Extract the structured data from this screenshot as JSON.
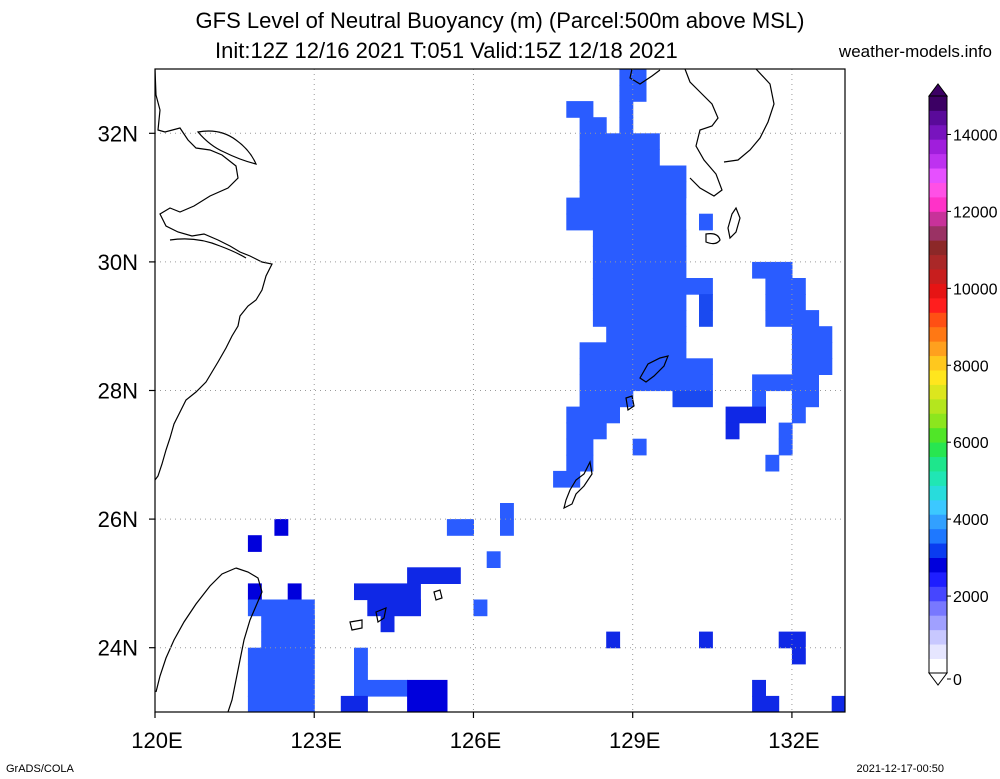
{
  "title_line1": "GFS Level of Neutral Buoyancy (m) (Parcel:500m above MSL)",
  "title_line2": "Init:12Z 12/16 2021 T:051 Valid:15Z 12/18 2021",
  "site": "weather-models.info",
  "footer_left": "GrADS/COLA",
  "footer_right": "2021-12-17-00:50",
  "chart_data": {
    "type": "heatmap",
    "title": "GFS Level of Neutral Buoyancy (m) (Parcel:500m above MSL)",
    "subtitle": "Init:12Z 12/16 2021 T:051 Valid:15Z 12/18 2021",
    "xlabel": "",
    "ylabel": "",
    "x_range": [
      120,
      133
    ],
    "y_range": [
      23,
      33
    ],
    "x_ticks": [
      120,
      123,
      126,
      129,
      132
    ],
    "x_tick_labels": [
      "120E",
      "123E",
      "126E",
      "129E",
      "132E"
    ],
    "y_ticks": [
      24,
      26,
      28,
      30,
      32
    ],
    "y_tick_labels": [
      "24N",
      "26N",
      "28N",
      "30N",
      "32N"
    ],
    "grid": true,
    "grid_resolution_deg": 0.25,
    "colorbar": {
      "range": [
        0,
        15000
      ],
      "tick_values": [
        0,
        2000,
        4000,
        6000,
        8000,
        10000,
        12000,
        14000
      ],
      "tick_labels": [
        "0",
        "2000",
        "4000",
        "6000",
        "8000",
        "10000",
        "12000",
        "14000"
      ],
      "colors": [
        "#ffffff",
        "#e6e6ff",
        "#c8c8ff",
        "#a0a0ff",
        "#7878ff",
        "#4646ff",
        "#1e1eff",
        "#0000dc",
        "#0a3cf0",
        "#1e78ff",
        "#32a0ff",
        "#3cc8ff",
        "#28dcdc",
        "#20e6b4",
        "#1ee68c",
        "#28e650",
        "#50e628",
        "#8ce61e",
        "#b4e61e",
        "#dce61e",
        "#ffe61e",
        "#ffc81e",
        "#ffa01e",
        "#ff7814",
        "#ff5014",
        "#ff1e1e",
        "#e61414",
        "#c81e1e",
        "#aa2828",
        "#8c2828",
        "#9a3264",
        "#c8329a",
        "#ff32c8",
        "#ff50e6",
        "#e650ff",
        "#be32f0",
        "#a01edc",
        "#7814be",
        "#5a0a9a",
        "#3c0064"
      ],
      "position": "right"
    },
    "cell_colors": {
      "a": "#2a5cff",
      "b": "#1a4af0",
      "c": "#0f28e6",
      "d": "#0000dc"
    },
    "rows": [
      {
        "lat": 32.875,
        "cells": [
          [
            128.75,
            129.25,
            "a"
          ]
        ]
      },
      {
        "lat": 32.625,
        "cells": [
          [
            128.75,
            129.25,
            "a"
          ]
        ]
      },
      {
        "lat": 32.375,
        "cells": [
          [
            127.75,
            128.25,
            "a"
          ],
          [
            128.75,
            129.0,
            "a"
          ]
        ]
      },
      {
        "lat": 32.125,
        "cells": [
          [
            128.0,
            128.5,
            "a"
          ],
          [
            128.75,
            129.0,
            "a"
          ]
        ]
      },
      {
        "lat": 31.875,
        "cells": [
          [
            128.0,
            129.5,
            "a"
          ]
        ]
      },
      {
        "lat": 31.625,
        "cells": [
          [
            128.0,
            129.5,
            "a"
          ]
        ]
      },
      {
        "lat": 31.375,
        "cells": [
          [
            128.0,
            130.0,
            "a"
          ]
        ]
      },
      {
        "lat": 31.125,
        "cells": [
          [
            128.0,
            130.0,
            "a"
          ]
        ]
      },
      {
        "lat": 30.875,
        "cells": [
          [
            127.75,
            130.0,
            "a"
          ]
        ]
      },
      {
        "lat": 30.625,
        "cells": [
          [
            127.75,
            130.0,
            "a"
          ],
          [
            130.25,
            130.5,
            "a"
          ]
        ]
      },
      {
        "lat": 30.375,
        "cells": [
          [
            128.25,
            130.0,
            "a"
          ]
        ]
      },
      {
        "lat": 30.125,
        "cells": [
          [
            128.25,
            130.0,
            "a"
          ]
        ]
      },
      {
        "lat": 29.875,
        "cells": [
          [
            128.25,
            130.0,
            "a"
          ],
          [
            131.25,
            132.0,
            "a"
          ]
        ]
      },
      {
        "lat": 29.625,
        "cells": [
          [
            128.25,
            130.5,
            "a"
          ],
          [
            131.5,
            132.25,
            "a"
          ]
        ]
      },
      {
        "lat": 29.375,
        "cells": [
          [
            128.25,
            130.0,
            "a"
          ],
          [
            130.25,
            130.5,
            "b"
          ],
          [
            131.5,
            132.25,
            "a"
          ]
        ]
      },
      {
        "lat": 29.125,
        "cells": [
          [
            128.25,
            130.0,
            "a"
          ],
          [
            130.25,
            130.5,
            "b"
          ],
          [
            131.5,
            132.5,
            "a"
          ]
        ]
      },
      {
        "lat": 28.875,
        "cells": [
          [
            128.5,
            130.0,
            "a"
          ],
          [
            132.0,
            132.75,
            "a"
          ]
        ]
      },
      {
        "lat": 28.625,
        "cells": [
          [
            128.0,
            130.0,
            "a"
          ],
          [
            132.0,
            132.75,
            "a"
          ]
        ]
      },
      {
        "lat": 28.375,
        "cells": [
          [
            128.0,
            130.5,
            "a"
          ],
          [
            132.0,
            132.75,
            "a"
          ]
        ]
      },
      {
        "lat": 28.125,
        "cells": [
          [
            128.0,
            130.5,
            "a"
          ],
          [
            131.25,
            132.5,
            "a"
          ]
        ]
      },
      {
        "lat": 27.875,
        "cells": [
          [
            128.0,
            129.0,
            "a"
          ],
          [
            129.75,
            130.5,
            "b"
          ],
          [
            131.25,
            131.5,
            "a"
          ],
          [
            132.0,
            132.5,
            "a"
          ]
        ]
      },
      {
        "lat": 27.625,
        "cells": [
          [
            127.75,
            128.75,
            "a"
          ],
          [
            130.75,
            131.5,
            "c"
          ],
          [
            132.0,
            132.25,
            "a"
          ]
        ]
      },
      {
        "lat": 27.375,
        "cells": [
          [
            127.75,
            128.5,
            "a"
          ],
          [
            130.75,
            131.0,
            "c"
          ],
          [
            131.75,
            132.0,
            "a"
          ]
        ]
      },
      {
        "lat": 27.125,
        "cells": [
          [
            127.75,
            128.25,
            "a"
          ],
          [
            129.0,
            129.25,
            "a"
          ],
          [
            131.75,
            132.0,
            "a"
          ]
        ]
      },
      {
        "lat": 26.875,
        "cells": [
          [
            127.75,
            128.25,
            "a"
          ],
          [
            131.5,
            131.75,
            "a"
          ]
        ]
      },
      {
        "lat": 26.625,
        "cells": [
          [
            127.5,
            128.0,
            "a"
          ]
        ]
      },
      {
        "lat": 26.125,
        "cells": [
          [
            126.5,
            126.75,
            "a"
          ]
        ]
      },
      {
        "lat": 25.875,
        "cells": [
          [
            122.25,
            122.5,
            "d"
          ],
          [
            125.5,
            126.0,
            "a"
          ],
          [
            126.5,
            126.75,
            "a"
          ]
        ]
      },
      {
        "lat": 25.625,
        "cells": [
          [
            121.75,
            122.0,
            "d"
          ]
        ]
      },
      {
        "lat": 25.375,
        "cells": [
          [
            126.25,
            126.5,
            "a"
          ]
        ]
      },
      {
        "lat": 25.125,
        "cells": [
          [
            124.75,
            125.75,
            "c"
          ]
        ]
      },
      {
        "lat": 24.875,
        "cells": [
          [
            121.75,
            122.0,
            "d"
          ],
          [
            122.5,
            122.75,
            "d"
          ],
          [
            123.75,
            125.0,
            "c"
          ]
        ]
      },
      {
        "lat": 24.625,
        "cells": [
          [
            121.75,
            123.0,
            "a"
          ],
          [
            124.0,
            125.0,
            "c"
          ],
          [
            126.0,
            126.25,
            "a"
          ]
        ]
      },
      {
        "lat": 24.375,
        "cells": [
          [
            122.0,
            123.0,
            "a"
          ],
          [
            124.25,
            124.5,
            "c"
          ]
        ]
      },
      {
        "lat": 24.125,
        "cells": [
          [
            122.0,
            123.0,
            "a"
          ],
          [
            128.5,
            128.75,
            "c"
          ],
          [
            130.25,
            130.5,
            "c"
          ],
          [
            131.75,
            132.25,
            "c"
          ]
        ]
      },
      {
        "lat": 23.875,
        "cells": [
          [
            121.75,
            123.0,
            "a"
          ],
          [
            123.75,
            124.0,
            "a"
          ],
          [
            132.0,
            132.25,
            "c"
          ]
        ]
      },
      {
        "lat": 23.625,
        "cells": [
          [
            121.75,
            123.0,
            "a"
          ],
          [
            123.75,
            124.0,
            "a"
          ]
        ]
      },
      {
        "lat": 23.375,
        "cells": [
          [
            121.75,
            123.0,
            "a"
          ],
          [
            123.75,
            124.0,
            "a"
          ],
          [
            124.0,
            124.75,
            "a"
          ],
          [
            124.75,
            125.5,
            "d"
          ],
          [
            131.25,
            131.5,
            "c"
          ]
        ]
      },
      {
        "lat": 23.125,
        "cells": [
          [
            121.75,
            123.0,
            "a"
          ],
          [
            123.5,
            124.0,
            "c"
          ],
          [
            124.75,
            125.5,
            "d"
          ],
          [
            131.25,
            131.75,
            "c"
          ],
          [
            132.75,
            133.0,
            "c"
          ]
        ]
      }
    ]
  }
}
